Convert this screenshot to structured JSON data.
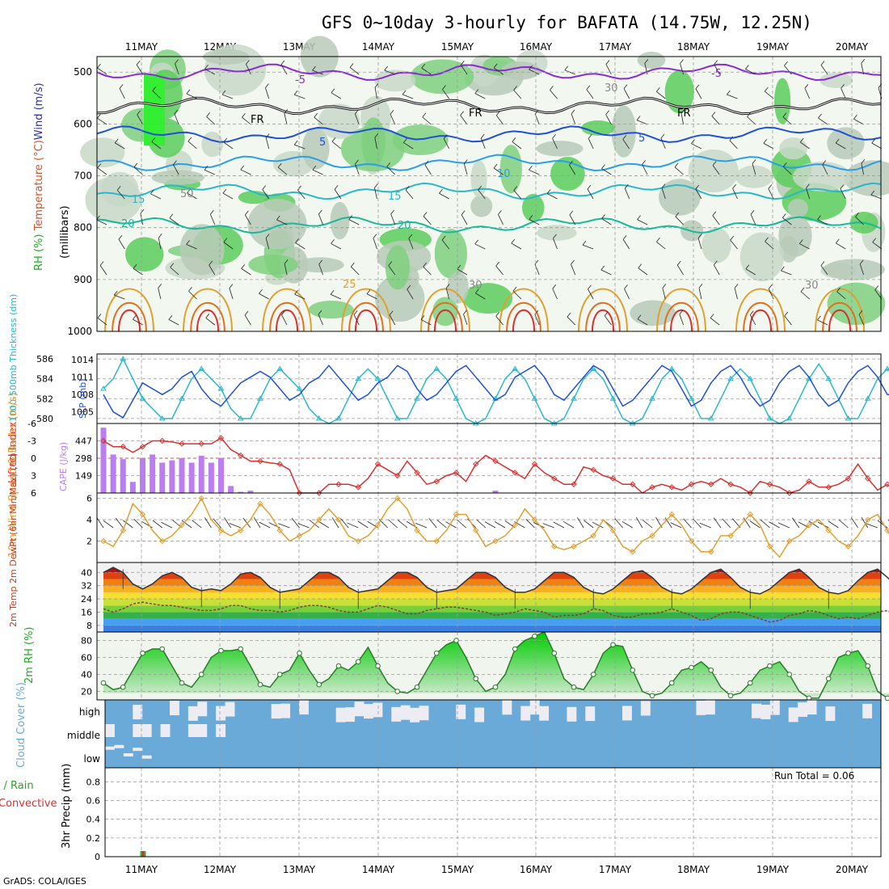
{
  "title": "GFS 0~10day 3-hourly for BAFATA (14.75W, 12.25N)",
  "footer": "GrADS: COLA/IGES",
  "dates": [
    "11MAY",
    "12MAY",
    "13MAY",
    "14MAY",
    "15MAY",
    "16MAY",
    "17MAY",
    "18MAY",
    "19MAY",
    "20MAY"
  ],
  "colors": {
    "purple": "#8a2bd2",
    "blue": "#1f4fd6",
    "cyan": "#2ab7c9",
    "lightblue": "#2a9ee8",
    "teal": "#18b898",
    "orange": "#e0a030",
    "darkorange": "#e07020",
    "red": "#d83030",
    "rhgreen": "#22bb22",
    "cape": "#bb7ef0",
    "cloud": "#6aaad8"
  },
  "chart_data": [
    {
      "type": "contour",
      "panel": "upper-air",
      "ylabel_parts": [
        "RH (%)",
        "Temperature (°C)",
        "Wind (m/s)"
      ],
      "ylabel_unit": "(millibars)",
      "y_ticks": [
        500,
        600,
        700,
        800,
        900,
        1000
      ],
      "ylim": [
        1000,
        470
      ],
      "isotherm_labels": [
        "-5",
        "-5",
        "FR",
        "FR",
        "FR",
        "5",
        "5",
        "10",
        "15",
        "15",
        "20",
        "20",
        "25",
        "30",
        "30",
        "30",
        "50",
        "30"
      ],
      "isotherms": [
        {
          "name": "-5",
          "color": "purple",
          "level": 500
        },
        {
          "name": "FR",
          "color": "black",
          "level": 565
        },
        {
          "name": "5",
          "color": "blue",
          "level": 620
        },
        {
          "name": "10",
          "color": "lightblue",
          "level": 675
        },
        {
          "name": "15",
          "color": "cyan",
          "level": 730
        },
        {
          "name": "20",
          "color": "teal",
          "level": 795
        }
      ]
    },
    {
      "type": "line",
      "panel": "thickness-slp",
      "ylabel_left": "1000-500mb Thickness (dm)",
      "ylabel_right": "SLP (mb)",
      "left_ticks": [
        "586",
        "584",
        "582",
        "580"
      ],
      "right_ticks": [
        "1014",
        "1011",
        "1008",
        "1005"
      ],
      "ylim_thickness": [
        579.5,
        586.5
      ],
      "ylim_slp": [
        1003,
        1015
      ],
      "series": [
        {
          "name": "Thickness",
          "color": "cyan",
          "values": [
            583,
            584,
            586,
            584,
            582,
            581,
            580,
            580,
            582,
            584,
            585,
            584,
            583,
            581,
            580,
            580,
            582,
            584,
            585,
            584,
            583,
            581,
            580,
            579.5,
            580,
            582,
            584,
            585,
            584,
            582,
            580,
            580,
            582,
            584,
            585,
            584,
            582,
            580,
            579.5,
            580,
            582,
            584,
            585,
            584,
            582,
            580,
            579.5,
            580,
            582,
            584,
            585,
            584,
            582,
            580,
            579.5,
            580,
            582,
            584,
            585,
            584,
            582,
            580,
            580,
            582,
            584,
            585,
            584,
            582,
            580,
            579.5,
            580,
            582,
            584,
            585.5,
            584,
            582,
            580,
            580,
            582,
            584,
            585,
            584,
            582,
            580,
            580
          ]
        },
        {
          "name": "SLP",
          "color": "blue",
          "values": [
            1008,
            1005,
            1004,
            1007,
            1010,
            1009,
            1008,
            1009,
            1011,
            1012,
            1009,
            1007,
            1006,
            1008,
            1010,
            1011,
            1012,
            1011,
            1009,
            1007,
            1008,
            1010,
            1011,
            1013,
            1011,
            1009,
            1007,
            1008,
            1010,
            1011,
            1013,
            1012,
            1009,
            1007,
            1008,
            1010,
            1012,
            1013,
            1011,
            1009,
            1007,
            1008,
            1011,
            1012,
            1013,
            1011,
            1008,
            1007,
            1009,
            1011,
            1013,
            1012,
            1009,
            1006,
            1007,
            1009,
            1011,
            1013,
            1012,
            1009,
            1006,
            1007,
            1010,
            1012,
            1013,
            1011,
            1008,
            1006,
            1007,
            1010,
            1012,
            1013,
            1011,
            1008,
            1006,
            1007,
            1010,
            1012,
            1013,
            1011,
            1008,
            1008,
            1010,
            1011
          ]
        }
      ]
    },
    {
      "type": "bar+line",
      "panel": "cape-lifted-index",
      "ylabel_left": "Lifted Index",
      "ylabel_right": "CAPE (J/kg)",
      "li_ticks": [
        "-6",
        "-3",
        "0",
        "3",
        "6"
      ],
      "cape_ticks": [
        "447",
        "298",
        "149"
      ],
      "ylim_li": [
        6,
        -6
      ],
      "ylim_cape": [
        0,
        596
      ],
      "series": [
        {
          "name": "CAPE",
          "color": "cape",
          "values": [
            560,
            330,
            290,
            95,
            300,
            330,
            260,
            280,
            300,
            260,
            320,
            260,
            300,
            60,
            10,
            20,
            0,
            0,
            0,
            0,
            0,
            0,
            0,
            0,
            0,
            0,
            0,
            0,
            0,
            0,
            0,
            0,
            0,
            0,
            0,
            0,
            0,
            0,
            0,
            0,
            20,
            0,
            0,
            0,
            0,
            0,
            0,
            0,
            0,
            0,
            0,
            0,
            0,
            0,
            0,
            0,
            0,
            0,
            0,
            0,
            0,
            0,
            0,
            0,
            0,
            0,
            0,
            0,
            0,
            0,
            0,
            0,
            0,
            0,
            0,
            0,
            0,
            0,
            0,
            0,
            0,
            0,
            0,
            0
          ]
        },
        {
          "name": "Lifted Index",
          "color": "red",
          "values": [
            -3,
            -2,
            -2,
            -1,
            -2,
            -3,
            -3,
            -2.8,
            -2.5,
            -2.5,
            -2.5,
            -2.5,
            -3.5,
            -1.5,
            -0.5,
            0.5,
            0.5,
            0.8,
            1,
            2,
            6,
            6,
            6,
            4.5,
            4.5,
            4.5,
            5,
            3.5,
            1,
            2,
            3,
            0.5,
            2.5,
            4.5,
            4,
            3,
            2.5,
            4,
            1,
            -0.5,
            0.5,
            1.5,
            2.5,
            3.5,
            1,
            2.5,
            3.5,
            4.5,
            4.5,
            1.5,
            2,
            3,
            3.5,
            4.5,
            4.5,
            6,
            5,
            4.5,
            5,
            5.5,
            4.5,
            4,
            4.5,
            3.5,
            4.5,
            5,
            6,
            4,
            4.5,
            5,
            6,
            5.5,
            4,
            5,
            5,
            4.5,
            3.5,
            1,
            3.5,
            5.5,
            4.5,
            6,
            4.5,
            5,
            6
          ]
        }
      ]
    },
    {
      "type": "line",
      "panel": "wind-10m",
      "ylabel": "10m Wind Speed & Barbs (m/s)",
      "y_ticks": [
        "6",
        "4",
        "2"
      ],
      "ylim": [
        0,
        6.5
      ],
      "series": [
        {
          "name": "10m wind speed",
          "color": "orange",
          "values": [
            2,
            1.5,
            3,
            5.5,
            4.5,
            3,
            2,
            2.5,
            3.5,
            4.5,
            6,
            4,
            3,
            2.5,
            3,
            4,
            5.5,
            4.5,
            3,
            2,
            2.5,
            3,
            4,
            5,
            4,
            2.5,
            2,
            2.5,
            3.5,
            5,
            6,
            5,
            3,
            2,
            2,
            3,
            4.5,
            4.5,
            3,
            1.5,
            2,
            2.5,
            3.5,
            5,
            4,
            3,
            1.5,
            1.2,
            1.5,
            2,
            2.5,
            4,
            3,
            1.5,
            1,
            2,
            2.5,
            3.5,
            4.5,
            3.5,
            2,
            1,
            1,
            2.5,
            2.5,
            3.5,
            4.5,
            3.5,
            1.5,
            0.5,
            2,
            2.5,
            3.5,
            4,
            3,
            2,
            1.5,
            2.5,
            4,
            4.5,
            3,
            1.5,
            1.5,
            2,
            1.5
          ]
        }
      ]
    },
    {
      "type": "area",
      "panel": "temp-dewpoint",
      "ylabel": "2m Temp 2m DewPt (6hr Min/Max) (°C)",
      "y_ticks": [
        "40",
        "32",
        "24",
        "16",
        "8"
      ],
      "ylim": [
        4,
        46
      ],
      "series": [
        {
          "name": "2m Temp",
          "values": [
            40,
            43,
            40,
            33,
            30,
            33,
            38,
            40,
            37,
            31,
            29,
            30,
            29,
            33,
            39,
            40,
            37,
            31,
            28,
            29,
            30,
            35,
            40,
            40,
            37,
            31,
            28,
            29,
            30,
            35,
            40,
            40,
            37,
            31,
            28,
            29,
            30,
            35,
            40,
            40,
            37,
            31,
            28,
            28,
            30,
            35,
            40,
            40,
            37,
            31,
            28,
            27,
            30,
            35,
            40,
            41,
            37,
            31,
            28,
            27,
            30,
            35,
            40,
            42,
            37,
            31,
            28,
            27,
            30,
            35,
            40,
            42,
            37,
            31,
            28,
            27,
            29,
            35,
            40,
            42,
            37,
            31,
            28,
            26,
            25
          ]
        },
        {
          "name": "2m DewPt",
          "values": [
            18,
            16,
            18,
            21,
            22,
            21,
            20,
            20,
            19,
            18,
            17,
            17,
            18,
            20,
            20,
            18,
            17,
            17,
            16,
            17,
            19,
            20,
            20,
            19,
            17,
            16,
            16,
            18,
            20,
            19,
            17,
            15,
            15,
            17,
            18,
            19,
            19,
            18,
            17,
            16,
            14,
            15,
            16,
            18,
            17,
            16,
            13,
            14,
            14,
            15,
            18,
            17,
            14,
            13,
            13,
            15,
            15,
            16,
            18,
            16,
            14,
            11,
            12,
            15,
            16,
            16,
            14,
            12,
            10,
            11,
            14,
            15,
            17,
            16,
            14,
            12,
            13,
            12,
            14,
            16,
            17,
            13,
            14,
            15,
            15
          ]
        }
      ]
    },
    {
      "type": "area",
      "panel": "rh-2m",
      "ylabel": "2m RH (%)",
      "y_ticks": [
        "80",
        "60",
        "40",
        "20"
      ],
      "ylim": [
        10,
        90
      ],
      "series": [
        {
          "name": "2m RH",
          "color": "rhgreen",
          "values": [
            30,
            22,
            25,
            45,
            65,
            70,
            70,
            50,
            30,
            25,
            40,
            60,
            68,
            68,
            70,
            50,
            28,
            25,
            40,
            45,
            65,
            45,
            28,
            35,
            50,
            45,
            55,
            72,
            50,
            30,
            20,
            18,
            25,
            45,
            65,
            75,
            80,
            60,
            35,
            20,
            25,
            40,
            70,
            80,
            85,
            90,
            65,
            35,
            25,
            22,
            40,
            65,
            75,
            73,
            45,
            20,
            15,
            18,
            30,
            45,
            48,
            55,
            45,
            25,
            15,
            18,
            30,
            45,
            50,
            55,
            40,
            20,
            12,
            12,
            35,
            60,
            65,
            68,
            50,
            20,
            12,
            15,
            40,
            55,
            65,
            70
          ]
        }
      ]
    },
    {
      "type": "heatmap",
      "panel": "cloud-cover",
      "ylabel": "Cloud Cover (%)",
      "row_labels": [
        "high",
        "middle",
        "low"
      ]
    },
    {
      "type": "bar",
      "panel": "precip-3hr",
      "ylabel_parts": [
        "Total / Rain",
        "Convective"
      ],
      "ylabel_right": "3hr Precip (mm)",
      "y_ticks": [
        "0.8",
        "0.6",
        "0.4",
        "0.2",
        "0"
      ],
      "ylim": [
        0,
        0.95
      ],
      "run_total": "Run Total = 0.06",
      "series": [
        {
          "name": "Total",
          "color": "rhgreen",
          "values": [
            0,
            0,
            0,
            0,
            0.06,
            0,
            0
          ]
        },
        {
          "name": "Convective",
          "color": "red",
          "values": [
            0,
            0,
            0,
            0,
            0.06,
            0,
            0
          ]
        }
      ]
    }
  ]
}
